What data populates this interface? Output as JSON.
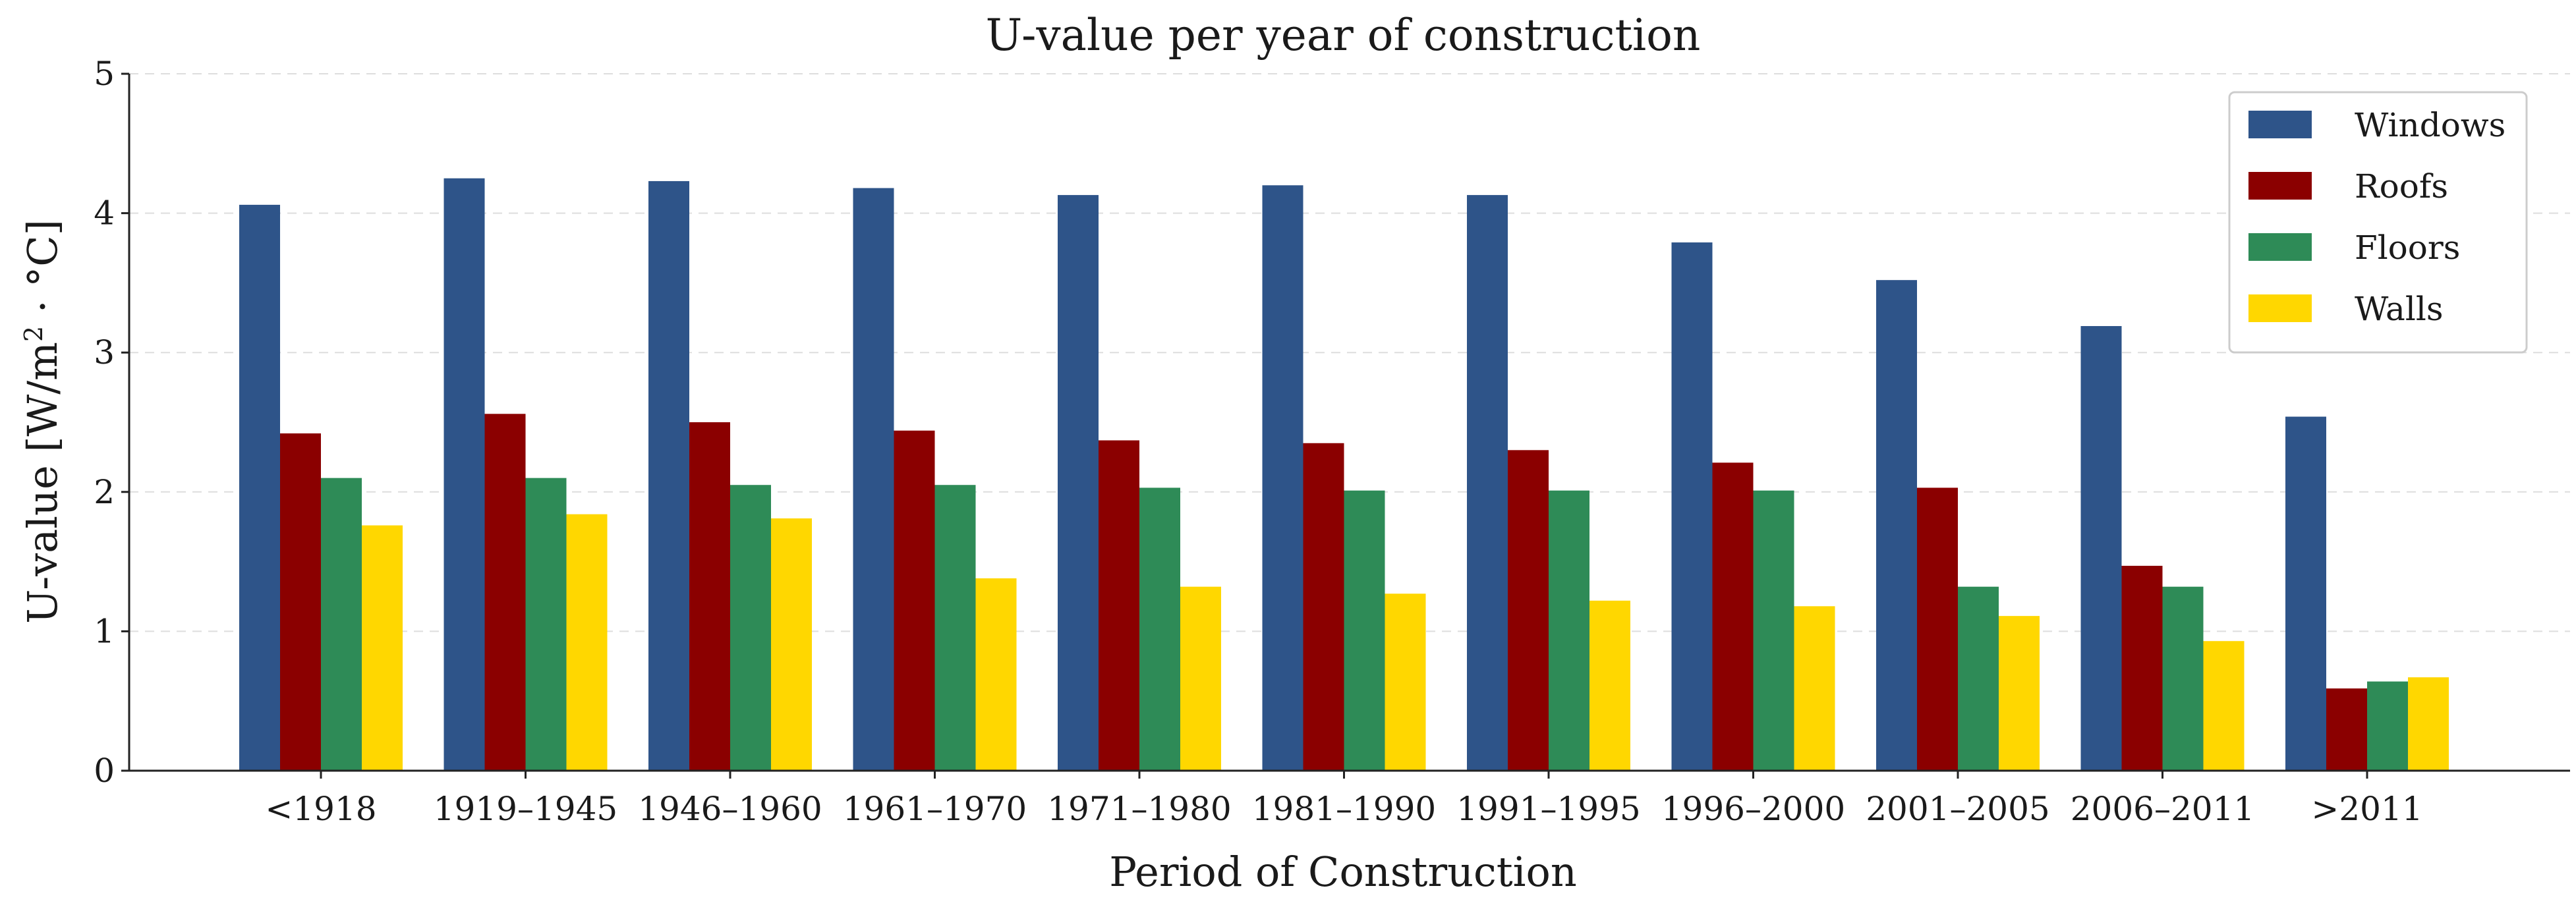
{
  "chart_data": {
    "type": "bar",
    "title": "U-value per year of construction",
    "xlabel": "Period of Construction",
    "ylabel_main": "U-value [W/m",
    "ylabel_sup": "2",
    "ylabel_rest": " · °C]",
    "ylim": [
      0,
      5
    ],
    "yticks": [
      "0",
      "1",
      "2",
      "3",
      "4",
      "5"
    ],
    "grid": "horizontal dashed",
    "legend_position": "top-right",
    "categories": [
      "<1918",
      "1919–1945",
      "1946–1960",
      "1961–1970",
      "1971–1980",
      "1981–1990",
      "1991–1995",
      "1996–2000",
      "2001–2005",
      "2006–2011",
      ">2011"
    ],
    "series": [
      {
        "name": "Windows",
        "color": "#2e5489",
        "values": [
          4.06,
          4.25,
          4.23,
          4.18,
          4.13,
          4.2,
          4.13,
          3.79,
          3.52,
          3.19,
          2.54
        ]
      },
      {
        "name": "Roofs",
        "color": "#8b0000",
        "values": [
          2.42,
          2.56,
          2.5,
          2.44,
          2.37,
          2.35,
          2.3,
          2.21,
          2.03,
          1.47,
          0.59
        ]
      },
      {
        "name": "Floors",
        "color": "#2e8b57",
        "values": [
          2.1,
          2.1,
          2.05,
          2.05,
          2.03,
          2.01,
          2.01,
          2.01,
          1.32,
          1.32,
          0.64
        ]
      },
      {
        "name": "Walls",
        "color": "#ffd700",
        "values": [
          1.76,
          1.84,
          1.81,
          1.38,
          1.32,
          1.27,
          1.22,
          1.18,
          1.11,
          0.93,
          0.67
        ]
      }
    ]
  }
}
